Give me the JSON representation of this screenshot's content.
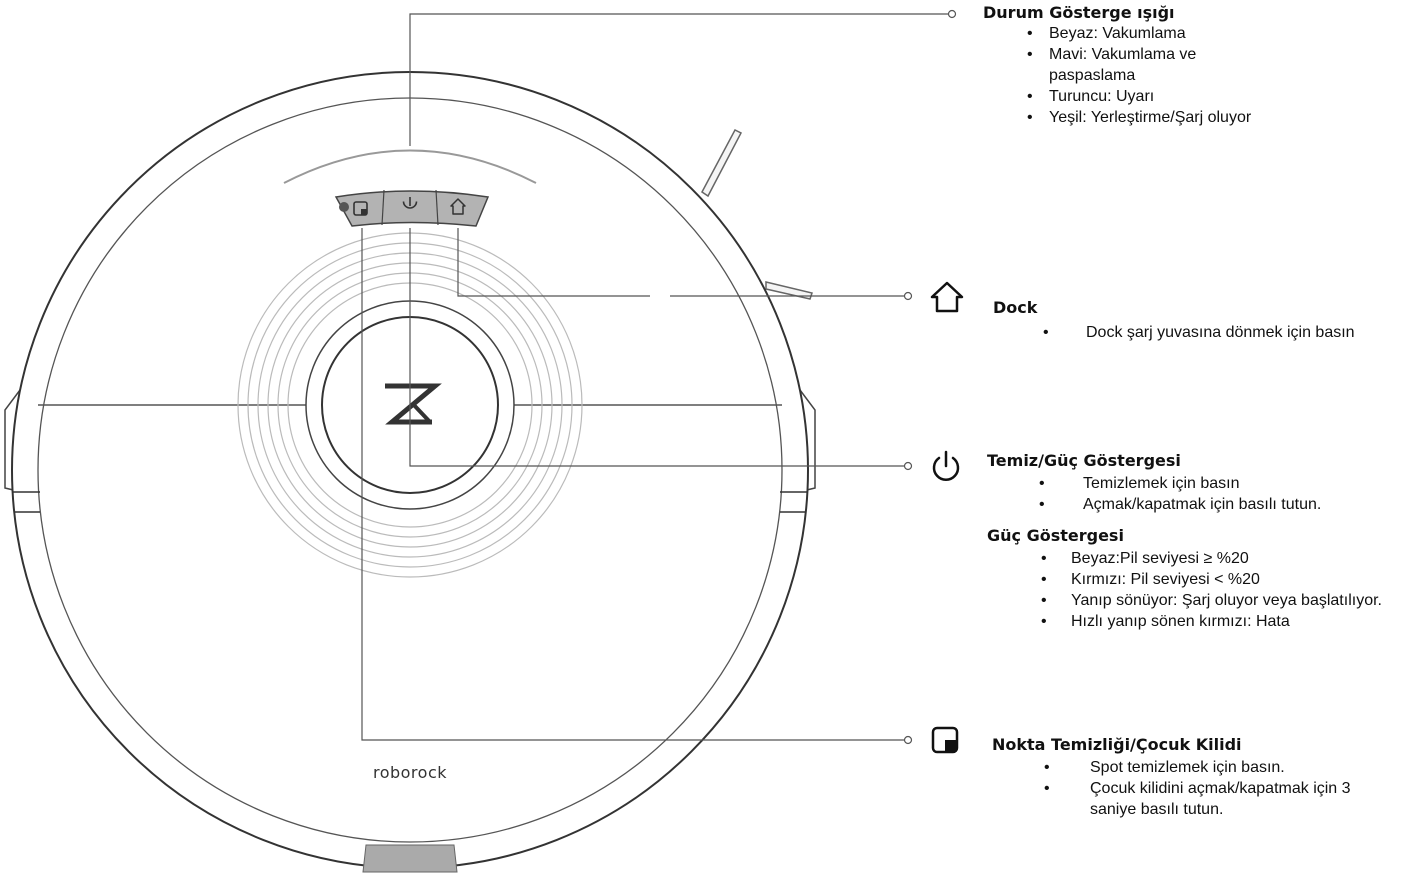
{
  "brand": "roborock",
  "status_light": {
    "title": "Durum Gösterge ışığı",
    "items": [
      "Beyaz: Vakumlama",
      "Mavi: Vakumlama ve paspaslama",
      "Turuncu: Uyarı",
      "Yeşil: Yerleştirme/Şarj oluyor"
    ]
  },
  "dock": {
    "title": "Dock",
    "icon": "home-icon",
    "items": [
      "Dock şarj yuvasına dönmek için basın"
    ]
  },
  "clean_power": {
    "title": "Temiz/Güç Göstergesi",
    "icon": "power-icon",
    "items": [
      "Temizlemek için basın",
      "Açmak/kapatmak için basılı tutun."
    ]
  },
  "power_indicator": {
    "title": "Güç Göstergesi",
    "items": [
      "Beyaz:Pil seviyesi ≥ %20",
      "Kırmızı: Pil seviyesi < %20",
      "Yanıp sönüyor: Şarj oluyor veya başlatılıyor.",
      "Hızlı yanıp sönen kırmızı: Hata"
    ]
  },
  "spot_clean": {
    "title": "Nokta Temizliği/Çocuk Kilidi",
    "icon": "spot-clean-icon",
    "items": [
      "Spot temizlemek için basın.",
      "Çocuk kilidini açmak/kapatmak için 3 saniye basılı tutun."
    ]
  },
  "colors": {
    "line": "#555555",
    "button_panel": "#b3b3b3",
    "bumper": "#aaaaaa"
  }
}
